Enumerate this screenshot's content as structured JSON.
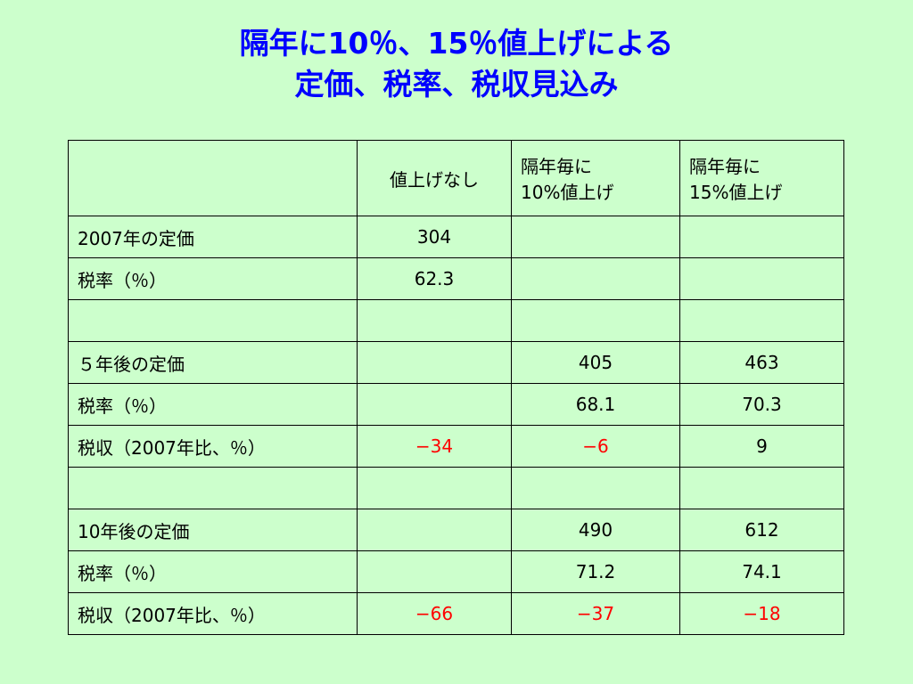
{
  "title": [
    "隔年に10％、15％値上げによる",
    "定価、税率、税収見込み"
  ],
  "table": {
    "header": [
      null,
      "値上げなし",
      "隔年毎に\n10%値上げ",
      "隔年毎に\n15%値上げ"
    ],
    "rows": [
      [
        "2007年の定価",
        "304",
        null,
        null
      ],
      [
        "税率（％）",
        "62.3",
        null,
        null
      ],
      [
        null,
        null,
        null,
        null
      ],
      [
        "５年後の定価",
        null,
        "405",
        "463"
      ],
      [
        "税率（％）",
        null,
        "68.1",
        "70.3"
      ],
      [
        "税収（2007年比、％）",
        "−34",
        "−6",
        "9"
      ],
      [
        null,
        null,
        null,
        null
      ],
      [
        "10年後の定価",
        null,
        "490",
        "612"
      ],
      [
        "税率（％）",
        null,
        "71.2",
        "74.1"
      ],
      [
        "税収（2007年比、％）",
        "−66",
        "−37",
        "−18"
      ]
    ]
  }
}
